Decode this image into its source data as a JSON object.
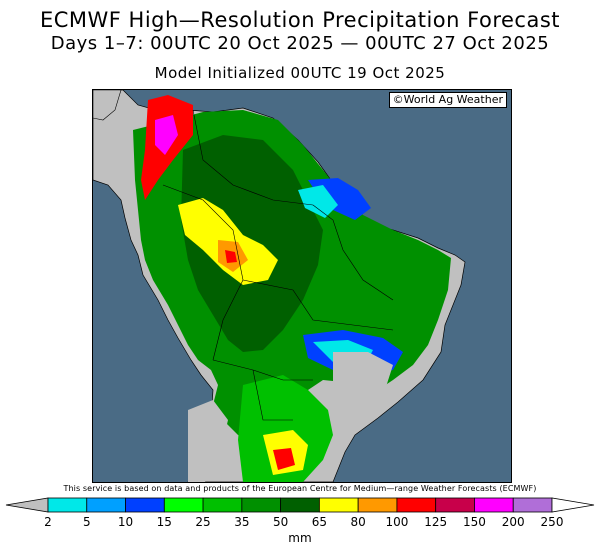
{
  "header": {
    "title": "ECMWF High—Resolution Precipitation Forecast",
    "period": "Days 1–7: 00UTC 20 Oct 2025 — 00UTC 27 Oct 2025",
    "init": "Model Initialized 00UTC 19 Oct 2025"
  },
  "map": {
    "copyright": "©World Ag Weather",
    "ocean_color": "#4a6b85",
    "land_color": "#c0c0c0"
  },
  "credit": "This service is based on data and products of the European Centre for Medium—range Weather Forecasts (ECMWF)",
  "legend": {
    "unit": "mm",
    "ticks": [
      "2",
      "5",
      "10",
      "15",
      "25",
      "35",
      "50",
      "65",
      "80",
      "100",
      "125",
      "150",
      "200",
      "250"
    ],
    "colors": [
      "#00e8e8",
      "#00a0ff",
      "#0040ff",
      "#00ff00",
      "#00c000",
      "#009000",
      "#006000",
      "#ffff00",
      "#ff9900",
      "#ff0000",
      "#c8004a",
      "#ff00ff",
      "#b06ed8"
    ]
  }
}
